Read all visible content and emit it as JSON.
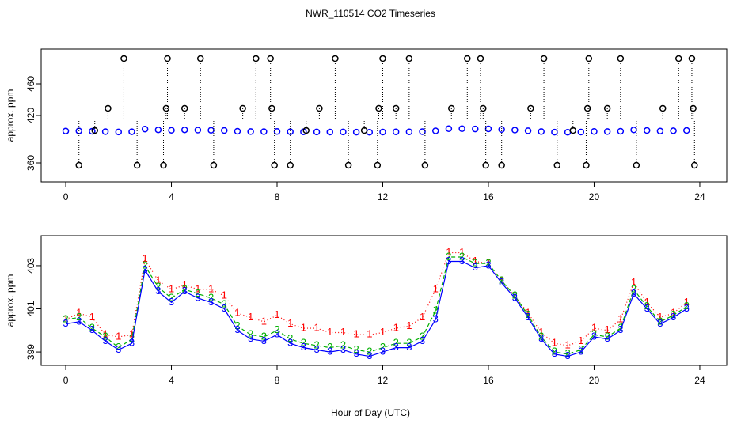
{
  "chart_data": [
    {
      "type": "scatter",
      "title": "NWR_110514  CO2 Timeseries",
      "ylabel": "approx. ppm",
      "xlim": [
        -0.93,
        25.02
      ],
      "xticks": [
        0,
        4,
        8,
        12,
        16,
        20,
        24
      ],
      "ylim": [
        336,
        504
      ],
      "yticks": [
        360,
        420,
        460
      ],
      "x": [
        0,
        0.5,
        1,
        1.5,
        2,
        2.5,
        3,
        3.5,
        4,
        4.5,
        5,
        5.5,
        6,
        6.5,
        7,
        7.5,
        8,
        8.5,
        9,
        9.5,
        10,
        10.5,
        11,
        11.5,
        12,
        12.5,
        13,
        13.5,
        14,
        14.5,
        15,
        15.5,
        16,
        16.5,
        17,
        17.5,
        18,
        18.5,
        19,
        19.5,
        20,
        20.5,
        21,
        21.5,
        22,
        22.5,
        23,
        23.5
      ],
      "series": [
        {
          "color": "#0000ff",
          "values": [
            400.3,
            400.4,
            400.0,
            399.5,
            399.1,
            399.4,
            402.8,
            401.8,
            401.3,
            401.8,
            401.5,
            401.3,
            401.0,
            400.0,
            399.6,
            399.5,
            399.8,
            399.4,
            399.2,
            399.1,
            399.0,
            399.1,
            398.9,
            398.8,
            399.0,
            399.2,
            399.2,
            399.5,
            400.5,
            403.2,
            403.2,
            402.9,
            403.0,
            402.2,
            401.5,
            400.6,
            399.6,
            398.9,
            398.8,
            399.0,
            399.7,
            399.6,
            400.0,
            401.7,
            401.0,
            400.3,
            400.6,
            401.0
          ]
        },
        {
          "color": "#000000",
          "dropline": true,
          "x": [
            0.5,
            1.1,
            1.6,
            2.2,
            2.7,
            3.7,
            3.8,
            3.85,
            4.5,
            5.1,
            5.6,
            6.7,
            7.2,
            7.75,
            7.8,
            7.9,
            8.5,
            9.1,
            9.6,
            10.2,
            10.7,
            11.3,
            11.8,
            11.85,
            12.0,
            12.5,
            13.0,
            13.6,
            14.6,
            15.2,
            15.7,
            15.8,
            15.9,
            16.5,
            17.6,
            18.1,
            18.6,
            19.2,
            19.7,
            19.75,
            19.8,
            20.5,
            21.0,
            21.6,
            22.6,
            23.2,
            23.7,
            23.75,
            23.8
          ],
          "values": [
            357,
            401,
            429,
            492,
            357,
            357,
            429,
            492,
            429,
            492,
            357,
            429,
            492,
            492,
            429,
            357,
            357,
            401,
            429,
            492,
            357,
            401,
            357,
            429,
            492,
            429,
            492,
            357,
            429,
            492,
            492,
            429,
            357,
            357,
            429,
            492,
            357,
            401,
            357,
            429,
            492,
            429,
            492,
            357,
            429,
            492,
            492,
            429,
            357
          ]
        }
      ]
    },
    {
      "type": "scatter",
      "ylabel": "approx. ppm",
      "xlabel": "Hour of Day (UTC)",
      "xlim": [
        -0.93,
        25.02
      ],
      "xticks": [
        0,
        4,
        8,
        12,
        16,
        20,
        24
      ],
      "ylim": [
        398.38,
        404.39
      ],
      "yticks": [
        399,
        401,
        403
      ],
      "x": [
        0,
        0.5,
        1,
        1.5,
        2,
        2.5,
        3,
        3.5,
        4,
        4.5,
        5,
        5.5,
        6,
        6.5,
        7,
        7.5,
        8,
        8.5,
        9,
        9.5,
        10,
        10.5,
        11,
        11.5,
        12,
        12.5,
        13,
        13.5,
        14,
        14.5,
        15,
        15.5,
        16,
        16.5,
        17,
        17.5,
        18,
        18.5,
        19,
        19.5,
        20,
        20.5,
        21,
        21.5,
        22,
        22.5,
        23,
        23.5
      ],
      "series": [
        {
          "marker": "1",
          "color": "#ff0000",
          "line": "dotted",
          "values": [
            400.5,
            400.8,
            400.6,
            399.8,
            399.7,
            399.8,
            403.3,
            402.3,
            401.9,
            402.1,
            401.9,
            401.9,
            401.6,
            400.8,
            400.6,
            400.4,
            400.7,
            400.3,
            400.1,
            400.1,
            399.9,
            399.9,
            399.8,
            399.8,
            399.9,
            400.1,
            400.2,
            400.6,
            401.9,
            403.6,
            403.6,
            403.2,
            403.1,
            402.3,
            401.6,
            400.8,
            399.9,
            399.4,
            399.3,
            399.5,
            400.1,
            400.0,
            400.5,
            402.2,
            401.3,
            400.6,
            400.8,
            401.3
          ]
        },
        {
          "marker": "2",
          "color": "#00b000",
          "line": "dashed",
          "values": [
            400.5,
            400.6,
            400.1,
            399.7,
            399.2,
            399.6,
            403.0,
            402.0,
            401.5,
            401.9,
            401.7,
            401.5,
            401.2,
            400.2,
            399.8,
            399.7,
            400.0,
            399.6,
            399.4,
            399.3,
            399.2,
            399.3,
            399.1,
            399.0,
            399.2,
            399.4,
            399.4,
            399.7,
            400.9,
            403.4,
            403.4,
            403.1,
            403.1,
            402.3,
            401.6,
            400.7,
            399.7,
            399.0,
            398.9,
            399.1,
            399.8,
            399.7,
            400.1,
            401.9,
            401.1,
            400.4,
            400.7,
            401.1
          ]
        },
        {
          "marker": "3",
          "color": "#0000ff",
          "line": "solid",
          "values": [
            400.3,
            400.4,
            400.0,
            399.5,
            399.1,
            399.4,
            402.8,
            401.8,
            401.3,
            401.8,
            401.5,
            401.3,
            401.0,
            400.0,
            399.6,
            399.5,
            399.8,
            399.4,
            399.2,
            399.1,
            399.0,
            399.1,
            398.9,
            398.8,
            399.0,
            399.2,
            399.2,
            399.5,
            400.5,
            403.2,
            403.2,
            402.9,
            403.0,
            402.2,
            401.5,
            400.6,
            399.6,
            398.9,
            398.8,
            399.0,
            399.7,
            399.6,
            400.0,
            401.7,
            401.0,
            400.3,
            400.6,
            401.0
          ]
        }
      ]
    }
  ]
}
